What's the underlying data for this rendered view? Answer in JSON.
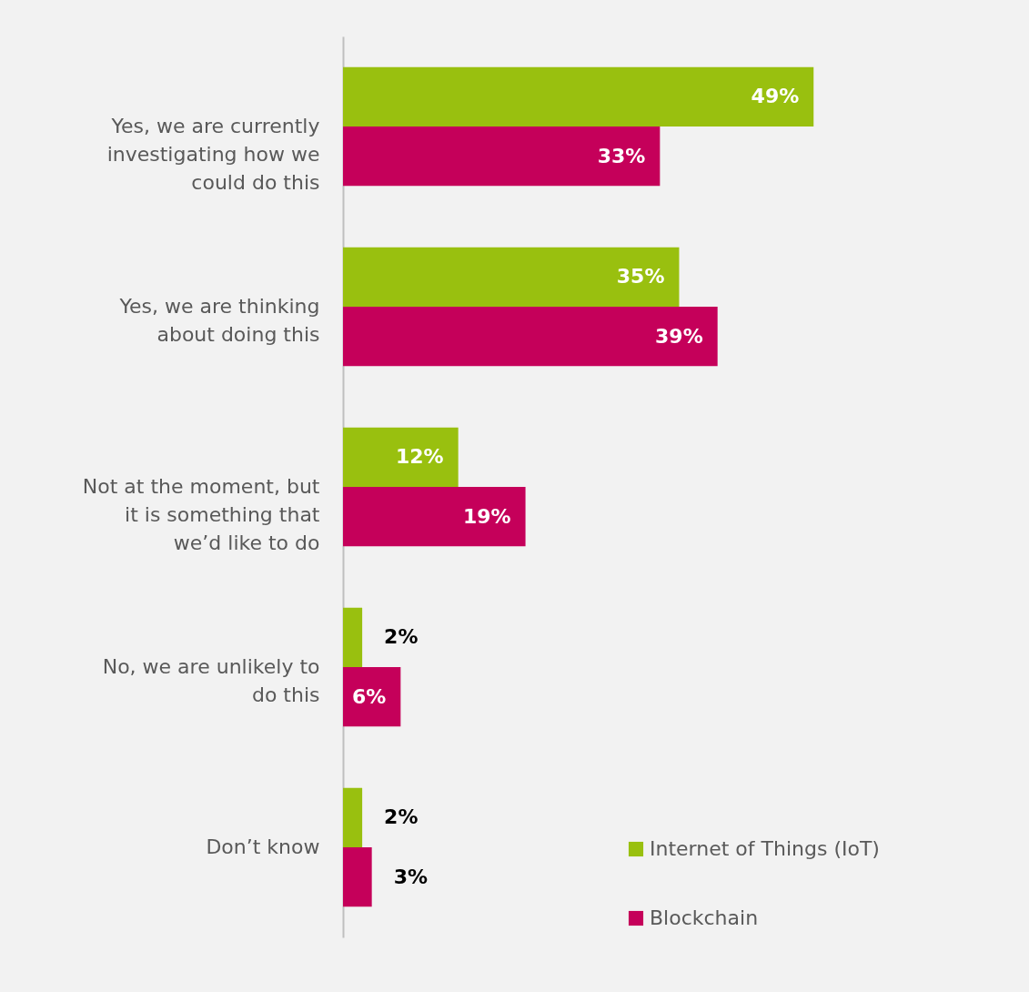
{
  "chart_data": {
    "type": "bar",
    "orientation": "horizontal",
    "categories": [
      "Yes, we are currently investigating how we could do this",
      "Yes, we are thinking about doing this",
      "Not at the moment, but it is something that we’d like to do",
      "No, we are unlikely to do this",
      "Don’t know"
    ],
    "series": [
      {
        "name": "Internet of Things (IoT)",
        "color": "#99c00f",
        "values": [
          49,
          35,
          12,
          2,
          2
        ],
        "value_labels": [
          "49%",
          "35%",
          "12%",
          "2%",
          "2%"
        ]
      },
      {
        "name": "Blockchain",
        "color": "#c5005a",
        "values": [
          33,
          39,
          19,
          6,
          3
        ],
        "value_labels": [
          "33%",
          "39%",
          "19%",
          "6%",
          "3%"
        ]
      }
    ],
    "legend": "bottom right"
  }
}
